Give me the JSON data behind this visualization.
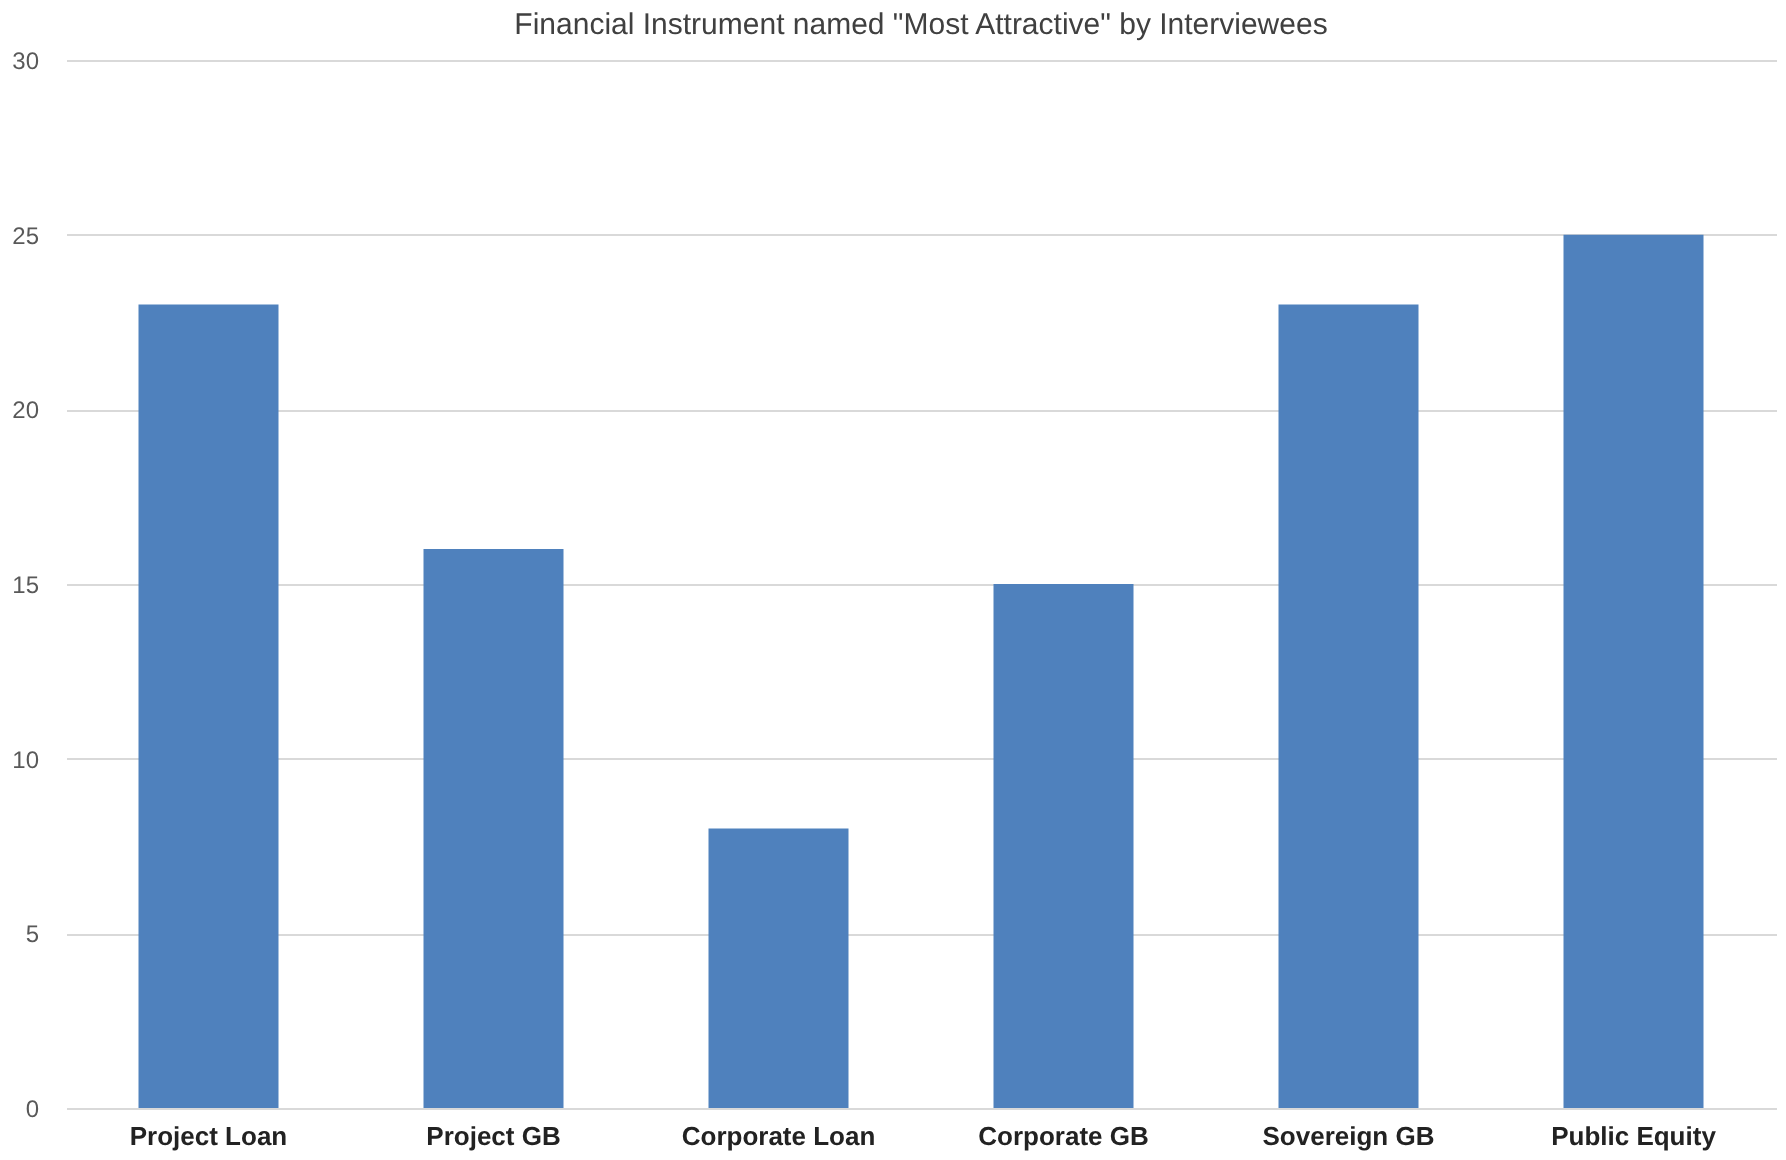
{
  "chart_data": {
    "type": "bar",
    "title": "Financial Instrument named \"Most Attractive\" by Interviewees",
    "categories": [
      "Project Loan",
      "Project GB",
      "Corporate Loan",
      "Corporate GB",
      "Sovereign GB",
      "Public Equity"
    ],
    "values": [
      23,
      16,
      8,
      15,
      23,
      25
    ],
    "color": "#4f81bd",
    "ylim": [
      0,
      30
    ],
    "yticks": [
      0,
      5,
      10,
      15,
      20,
      25,
      30
    ],
    "grid": "y"
  }
}
